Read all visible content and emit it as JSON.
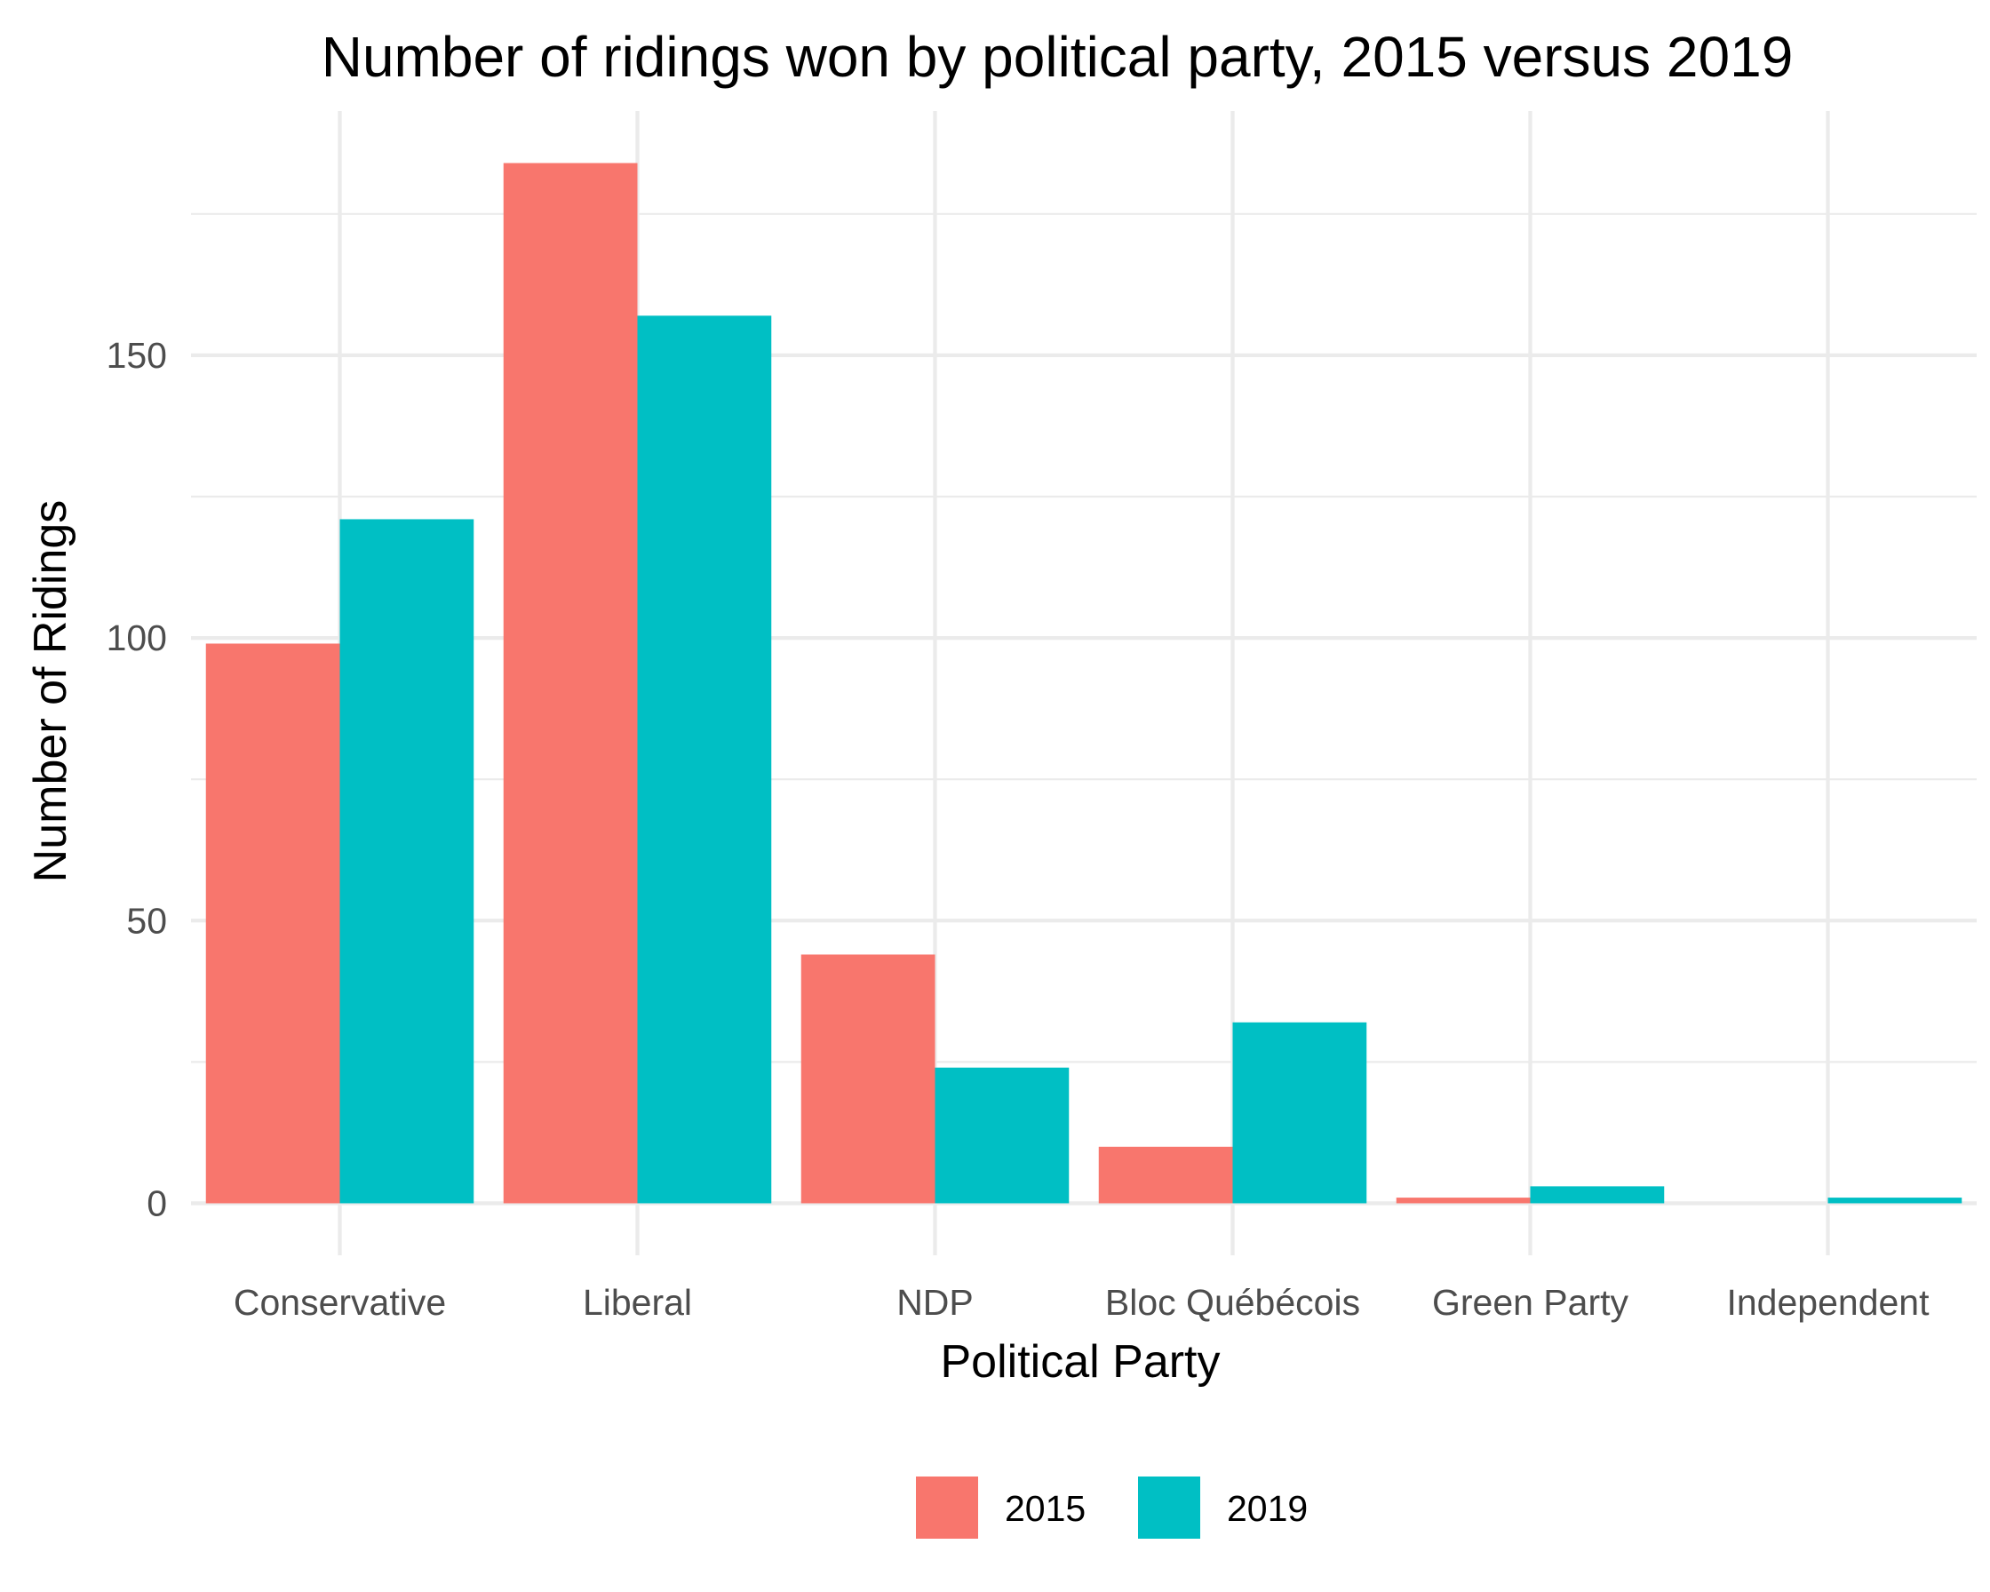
{
  "chart_data": {
    "type": "bar",
    "title": "Number of ridings won by political party, 2015 versus 2019",
    "xlabel": "Political Party",
    "ylabel": "Number of Ridings",
    "categories": [
      "Conservative",
      "Liberal",
      "NDP",
      "Bloc Québécois",
      "Green Party",
      "Independent"
    ],
    "series": [
      {
        "name": "2015",
        "color": "#F8766D",
        "values": [
          99,
          184,
          44,
          10,
          1,
          0
        ]
      },
      {
        "name": "2019",
        "color": "#00BFC4",
        "values": [
          121,
          157,
          24,
          32,
          3,
          1
        ]
      }
    ],
    "yticks": [
      0,
      50,
      100,
      150
    ],
    "ylim": [
      -9.2,
      193.2
    ],
    "grid": true,
    "legend_position": "bottom"
  }
}
